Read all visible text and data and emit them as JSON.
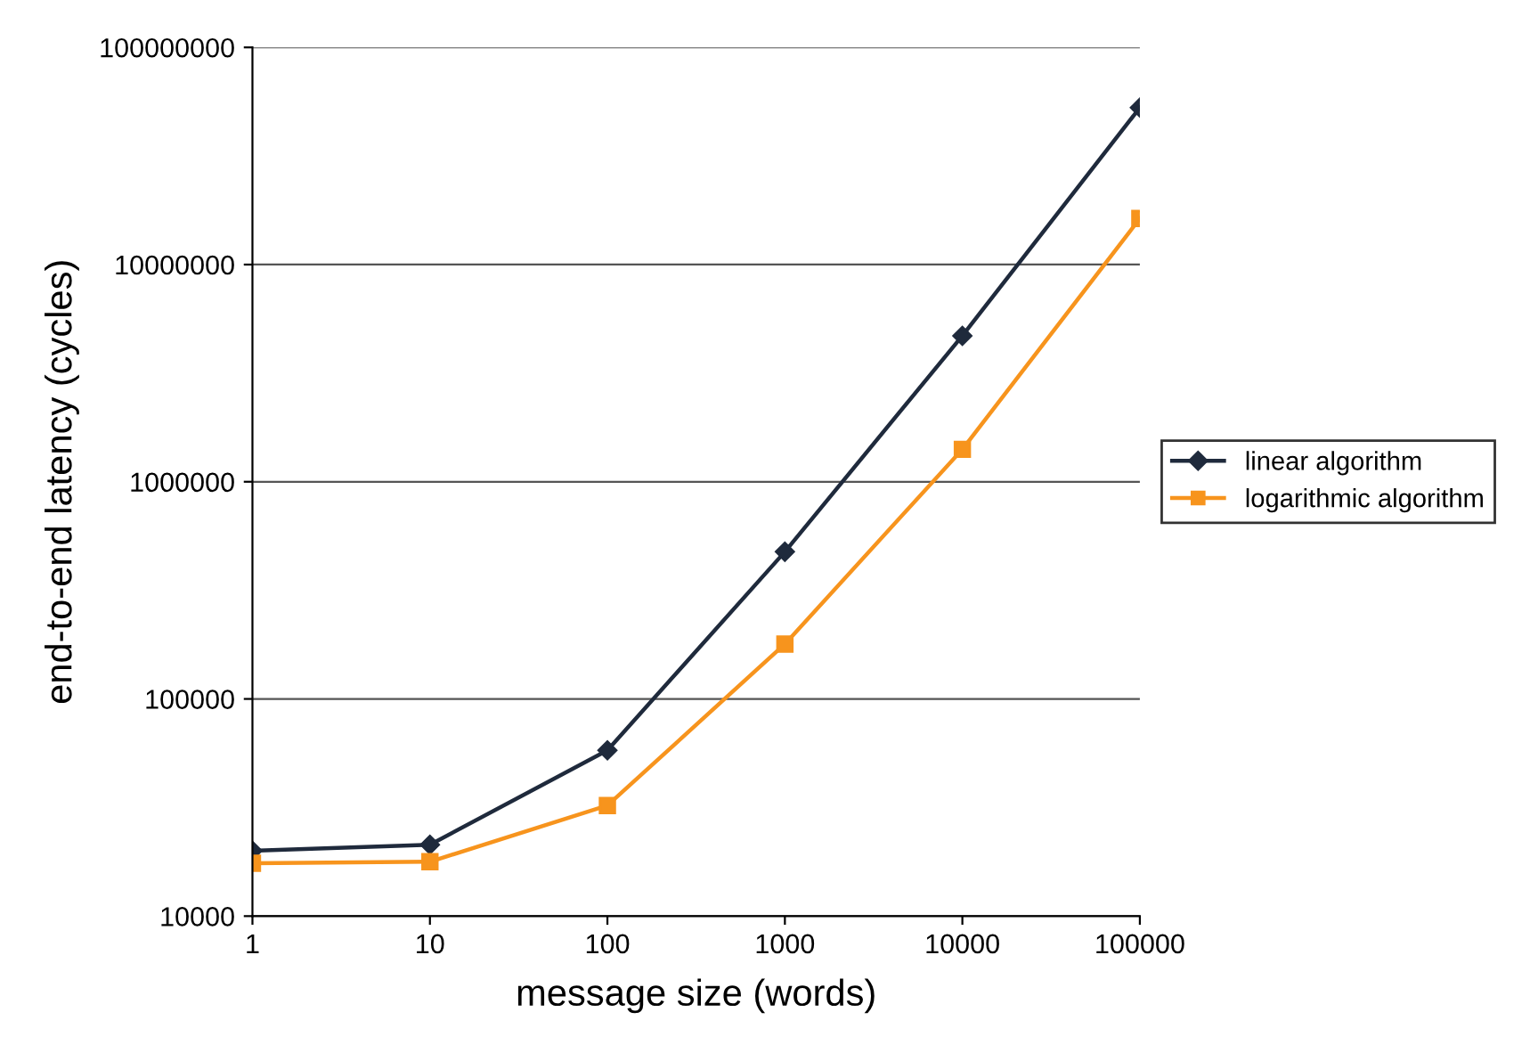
{
  "chart_data": {
    "type": "line",
    "xlabel": "message size (words)",
    "ylabel": "end-to-end latency (cycles)",
    "log": "xy",
    "x": [
      1,
      10,
      100,
      1000,
      10000,
      100000
    ],
    "series": [
      {
        "name": "linear algorithm",
        "color": "#1f2a3c",
        "marker": "diamond",
        "values": [
          20000,
          21300,
          58000,
          476000,
          4700000,
          52800000
        ]
      },
      {
        "name": "logarithmic algorithm",
        "color": "#f7941d",
        "marker": "square",
        "values": [
          17500,
          17800,
          32300,
          179000,
          1410000,
          16300000
        ]
      }
    ],
    "xlim": [
      1,
      100000
    ],
    "xticks": [
      1,
      10,
      100,
      1000,
      10000,
      100000
    ],
    "ylim": [
      10000,
      100000000
    ],
    "yticks": [
      10000,
      100000,
      1000000,
      10000000,
      100000000
    ],
    "grid": "y",
    "legend": "right",
    "line_style": "solid"
  }
}
